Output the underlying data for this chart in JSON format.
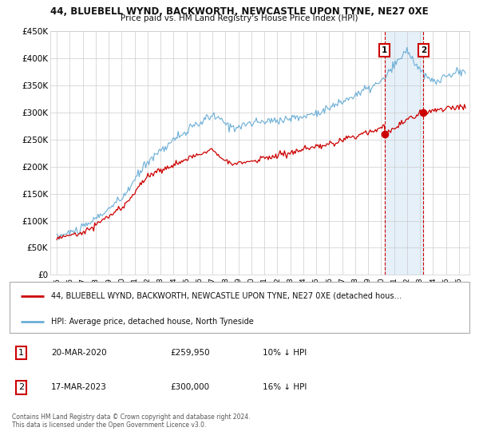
{
  "title1": "44, BLUEBELL WYND, BACKWORTH, NEWCASTLE UPON TYNE, NE27 0XE",
  "title2": "Price paid vs. HM Land Registry's House Price Index (HPI)",
  "ylim": [
    0,
    450000
  ],
  "yticks": [
    0,
    50000,
    100000,
    150000,
    200000,
    250000,
    300000,
    350000,
    400000,
    450000
  ],
  "ytick_labels": [
    "£0",
    "£50K",
    "£100K",
    "£150K",
    "£200K",
    "£250K",
    "£300K",
    "£350K",
    "£400K",
    "£450K"
  ],
  "hpi_color": "#6baed6",
  "sold_color": "#cc0000",
  "marker1_x": 2020.25,
  "marker1_value": 259950,
  "marker2_x": 2023.25,
  "marker2_value": 300000,
  "legend_line1": "44, BLUEBELL WYND, BACKWORTH, NEWCASTLE UPON TYNE, NE27 0XE (detached hous…",
  "legend_line2": "HPI: Average price, detached house, North Tyneside",
  "table_row1": [
    "1",
    "20-MAR-2020",
    "£259,950",
    "10% ↓ HPI"
  ],
  "table_row2": [
    "2",
    "17-MAR-2023",
    "£300,000",
    "16% ↓ HPI"
  ],
  "footer": "Contains HM Land Registry data © Crown copyright and database right 2024.\nThis data is licensed under the Open Government Licence v3.0.",
  "background_color": "#ffffff",
  "grid_color": "#cccccc",
  "shade_color": "#dbeaf7"
}
